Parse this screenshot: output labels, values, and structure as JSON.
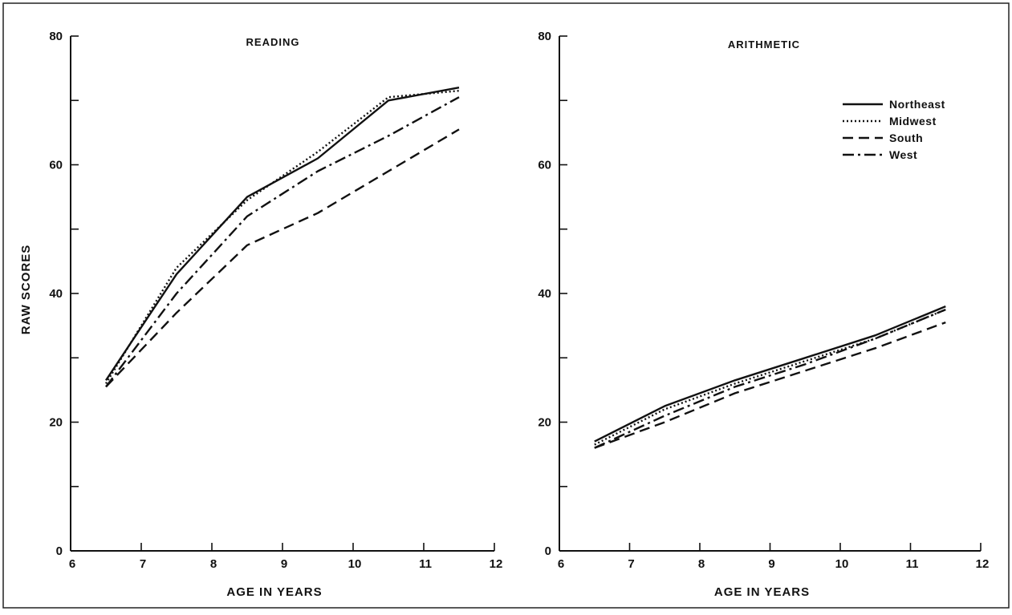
{
  "chart_data": [
    {
      "type": "line",
      "title": "READING",
      "xlabel": "AGE IN YEARS",
      "ylabel": "RAW SCORES",
      "xlim": [
        6,
        12
      ],
      "ylim": [
        0,
        80
      ],
      "xticks": [
        6,
        7,
        8,
        9,
        10,
        11,
        12
      ],
      "xtick_labels": [
        "6",
        "7",
        "8",
        "9",
        "10",
        "11",
        "12"
      ],
      "yticks": [
        0,
        10,
        20,
        30,
        40,
        50,
        60,
        70,
        80
      ],
      "ytick_labels": [
        "0",
        "",
        "20",
        "",
        "40",
        "",
        "60",
        "",
        "80"
      ],
      "x": [
        6.5,
        7.5,
        8.5,
        9.5,
        10.5,
        11.5
      ],
      "series": [
        {
          "name": "Northeast",
          "style": "solid",
          "values": [
            26.5,
            43,
            55,
            61,
            70,
            72
          ]
        },
        {
          "name": "Midwest",
          "style": "dotted",
          "values": [
            26,
            44,
            54.5,
            62,
            70.5,
            71.5
          ]
        },
        {
          "name": "South",
          "style": "dashed",
          "values": [
            25.5,
            37,
            47.5,
            52.5,
            59,
            65.5
          ]
        },
        {
          "name": "West",
          "style": "dashdot",
          "values": [
            25.5,
            40,
            52,
            59,
            64.5,
            70.5
          ]
        }
      ],
      "grid": false
    },
    {
      "type": "line",
      "title": "ARITHMETIC",
      "xlabel": "AGE IN YEARS",
      "ylabel": "",
      "xlim": [
        6,
        12
      ],
      "ylim": [
        0,
        80
      ],
      "xticks": [
        6,
        7,
        8,
        9,
        10,
        11,
        12
      ],
      "xtick_labels": [
        "6",
        "7",
        "8",
        "9",
        "10",
        "11",
        "12"
      ],
      "yticks": [
        0,
        10,
        20,
        30,
        40,
        50,
        60,
        70,
        80
      ],
      "ytick_labels": [
        "0",
        "",
        "20",
        "",
        "40",
        "",
        "60",
        "",
        "80"
      ],
      "x": [
        6.5,
        7.5,
        8.5,
        9.5,
        10.5,
        11.5
      ],
      "series": [
        {
          "name": "Northeast",
          "style": "solid",
          "values": [
            17,
            22.5,
            26.5,
            30,
            33.5,
            38
          ]
        },
        {
          "name": "Midwest",
          "style": "dotted",
          "values": [
            16.5,
            22,
            26,
            29.5,
            33,
            37.5
          ]
        },
        {
          "name": "South",
          "style": "dashed",
          "values": [
            16,
            20,
            24.5,
            28,
            31.5,
            35.5
          ]
        },
        {
          "name": "West",
          "style": "dashdot",
          "values": [
            16,
            21,
            25.5,
            29,
            33,
            37.5
          ]
        }
      ],
      "legend": {
        "placement": "top-right",
        "entries": [
          "Northeast",
          "Midwest",
          "South",
          "West"
        ]
      },
      "grid": false
    }
  ]
}
